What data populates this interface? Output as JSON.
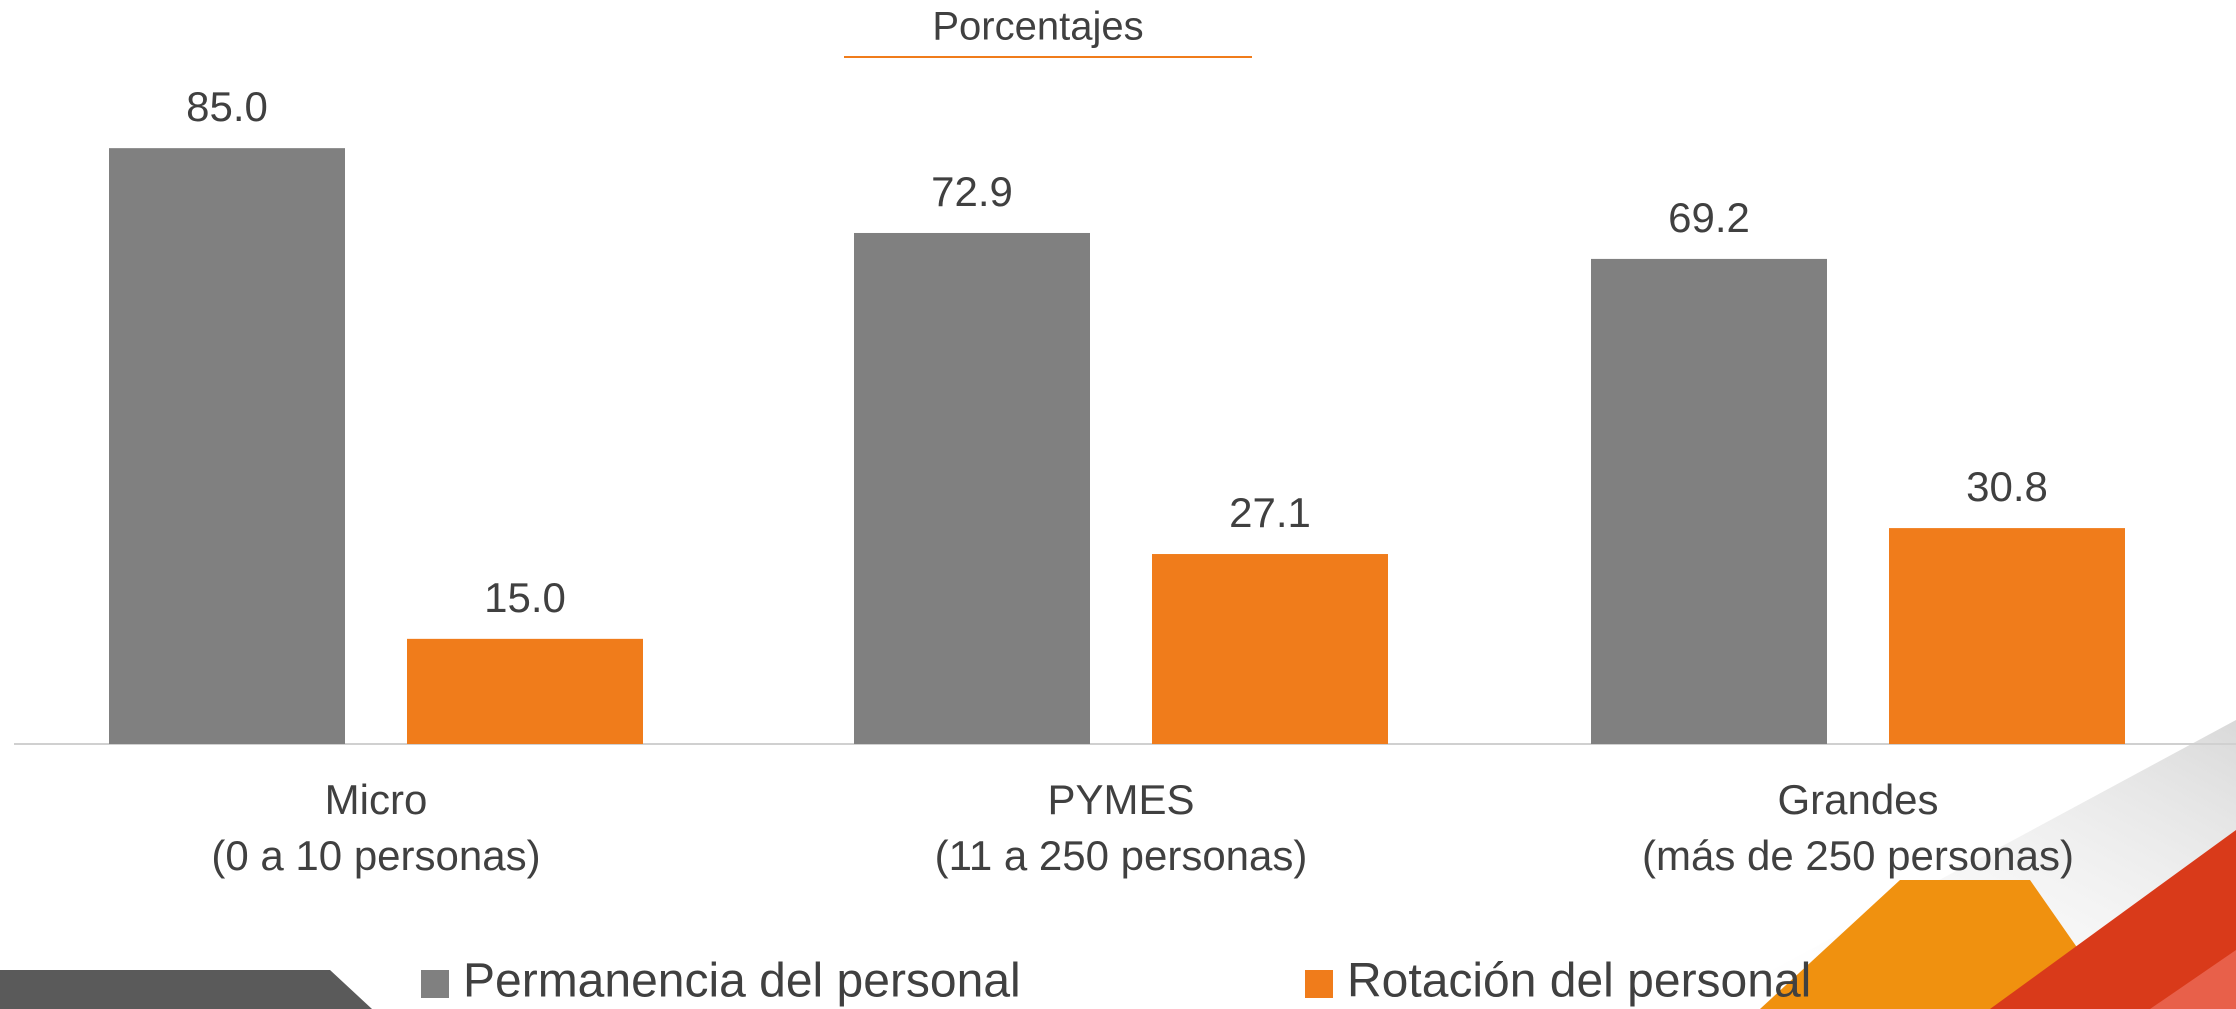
{
  "chart_data": {
    "type": "bar",
    "title": "Porcentajes",
    "categories": [
      [
        "Micro",
        "(0 a 10 personas)"
      ],
      [
        "PYMES",
        "(11 a 250 personas)"
      ],
      [
        "Grandes",
        "(más de 250 personas)"
      ]
    ],
    "series": [
      {
        "name": "Permanencia del personal",
        "color": "#808080",
        "values": [
          85.0,
          72.9,
          69.2
        ],
        "value_labels": [
          "85.0",
          "72.9",
          "69.2"
        ]
      },
      {
        "name": "Rotación del personal",
        "color": "#f07c1b",
        "values": [
          15.0,
          27.1,
          30.8
        ],
        "value_labels": [
          "15.0",
          "27.1",
          "30.8"
        ]
      }
    ],
    "ylim": [
      0,
      100
    ],
    "legend": "bottom"
  }
}
